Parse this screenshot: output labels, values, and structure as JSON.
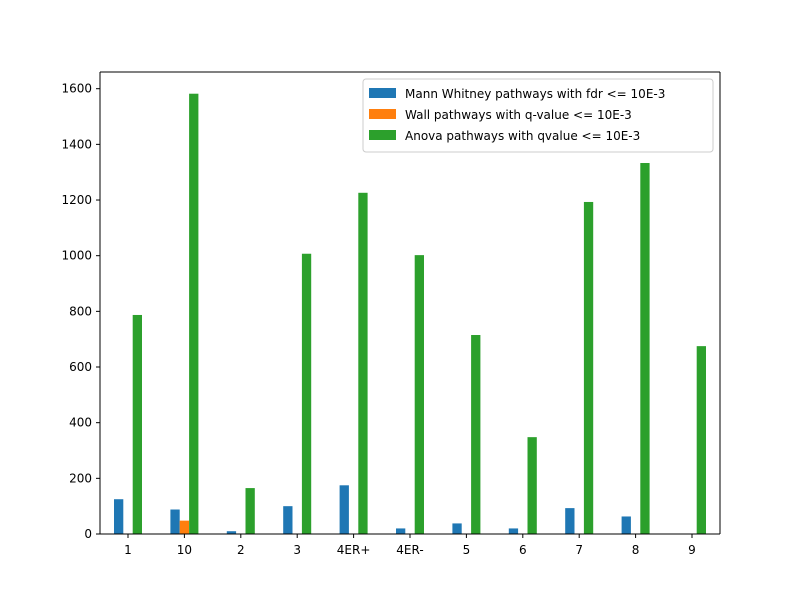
{
  "chart_data": {
    "type": "bar",
    "title": "",
    "xlabel": "",
    "ylabel": "",
    "categories": [
      "1",
      "10",
      "2",
      "3",
      "4ER+",
      "4ER-",
      "5",
      "6",
      "7",
      "8",
      "9"
    ],
    "series": [
      {
        "name": "Mann Whitney pathways with fdr <= 10E-3",
        "color": "#1f77b4",
        "values": [
          125,
          88,
          10,
          100,
          175,
          20,
          38,
          20,
          93,
          63,
          0
        ]
      },
      {
        "name": "Wall pathways with q-value <= 10E-3",
        "color": "#ff7f0e",
        "values": [
          0,
          48,
          0,
          0,
          0,
          0,
          0,
          0,
          0,
          0,
          0
        ]
      },
      {
        "name": "Anova pathways with qvalue <= 10E-3",
        "color": "#2ca02c",
        "values": [
          787,
          1582,
          165,
          1007,
          1226,
          1002,
          715,
          348,
          1193,
          1333,
          675
        ]
      }
    ],
    "ylim": [
      0,
      1660
    ],
    "yticks": [
      0,
      200,
      400,
      600,
      800,
      1000,
      1200,
      1400,
      1600
    ],
    "grid": false,
    "legend_position": "top-right"
  }
}
